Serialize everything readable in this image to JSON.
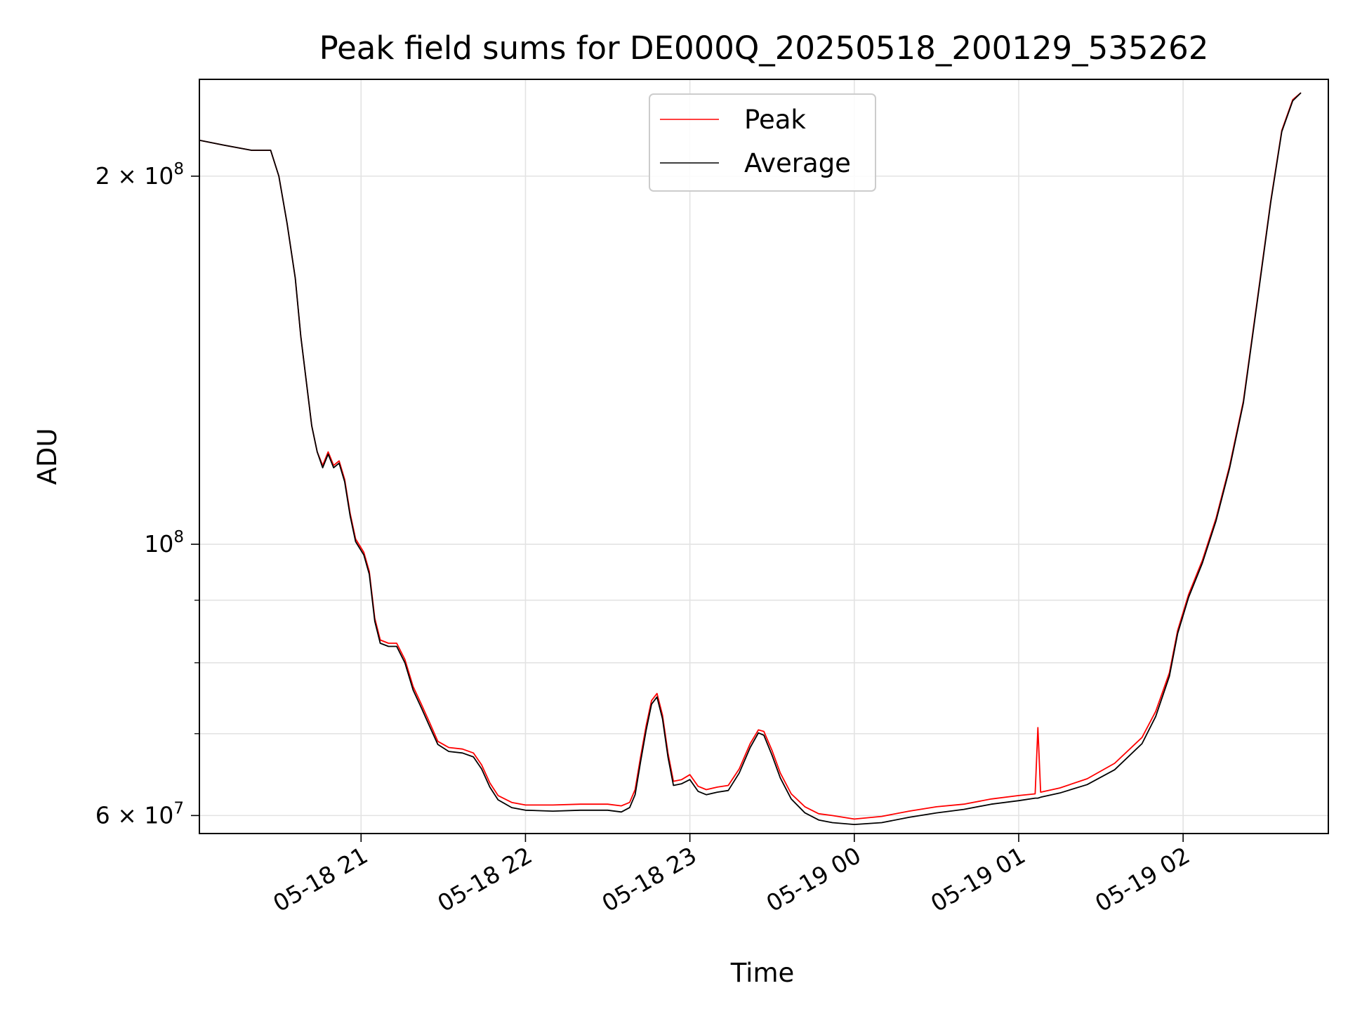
{
  "chart_data": {
    "type": "line",
    "title": "Peak field sums for DE000Q_20250518_200129_535262",
    "xlabel": "Time",
    "ylabel": "ADU",
    "yscale": "log",
    "ylim": [
      58000000,
      240000000
    ],
    "xlim": [
      "2025-05-18T20:01",
      "2025-05-19T02:53"
    ],
    "grid": true,
    "legend_position": "upper center",
    "x_ticks": [
      {
        "t": "2025-05-18T21:00",
        "label": "05-18 21"
      },
      {
        "t": "2025-05-18T22:00",
        "label": "05-18 22"
      },
      {
        "t": "2025-05-18T23:00",
        "label": "05-18 23"
      },
      {
        "t": "2025-05-19T00:00",
        "label": "05-19 00"
      },
      {
        "t": "2025-05-19T01:00",
        "label": "05-19 01"
      },
      {
        "t": "2025-05-19T02:00",
        "label": "05-19 02"
      }
    ],
    "y_major_ticks": [
      {
        "value": 60000000,
        "base": "6 × 10",
        "exp": "7"
      },
      {
        "value": 100000000,
        "base": "10",
        "exp": "8"
      },
      {
        "value": 200000000,
        "base": "2 × 10",
        "exp": "8"
      }
    ],
    "y_minor_ticks": [
      70000000,
      80000000,
      90000000
    ],
    "series": [
      {
        "name": "Peak",
        "color": "#ff0000",
        "points": [
          [
            "2025-05-18T20:01",
            214000000
          ],
          [
            "2025-05-18T20:10",
            212000000
          ],
          [
            "2025-05-18T20:20",
            210000000
          ],
          [
            "2025-05-18T20:27",
            210000000
          ],
          [
            "2025-05-18T20:30",
            200000000
          ],
          [
            "2025-05-18T20:33",
            183000000
          ],
          [
            "2025-05-18T20:36",
            165000000
          ],
          [
            "2025-05-18T20:38",
            148000000
          ],
          [
            "2025-05-18T20:40",
            136000000
          ],
          [
            "2025-05-18T20:42",
            125000000
          ],
          [
            "2025-05-18T20:44",
            119000000
          ],
          [
            "2025-05-18T20:46",
            116000000
          ],
          [
            "2025-05-18T20:48",
            119000000
          ],
          [
            "2025-05-18T20:50",
            116000000
          ],
          [
            "2025-05-18T20:52",
            117000000
          ],
          [
            "2025-05-18T20:54",
            113000000
          ],
          [
            "2025-05-18T20:56",
            106000000
          ],
          [
            "2025-05-18T20:58",
            101000000
          ],
          [
            "2025-05-18T21:01",
            98500000
          ],
          [
            "2025-05-18T21:03",
            95000000
          ],
          [
            "2025-05-18T21:05",
            87000000
          ],
          [
            "2025-05-18T21:07",
            83500000
          ],
          [
            "2025-05-18T21:10",
            83000000
          ],
          [
            "2025-05-18T21:13",
            83000000
          ],
          [
            "2025-05-18T21:16",
            80500000
          ],
          [
            "2025-05-18T21:19",
            76500000
          ],
          [
            "2025-05-18T21:22",
            74000000
          ],
          [
            "2025-05-18T21:25",
            71500000
          ],
          [
            "2025-05-18T21:28",
            69000000
          ],
          [
            "2025-05-18T21:32",
            68200000
          ],
          [
            "2025-05-18T21:37",
            68000000
          ],
          [
            "2025-05-18T21:41",
            67500000
          ],
          [
            "2025-05-18T21:44",
            66000000
          ],
          [
            "2025-05-18T21:47",
            63800000
          ],
          [
            "2025-05-18T21:50",
            62300000
          ],
          [
            "2025-05-18T21:55",
            61500000
          ],
          [
            "2025-05-18T22:00",
            61200000
          ],
          [
            "2025-05-18T22:10",
            61200000
          ],
          [
            "2025-05-18T22:20",
            61300000
          ],
          [
            "2025-05-18T22:30",
            61300000
          ],
          [
            "2025-05-18T22:35",
            61100000
          ],
          [
            "2025-05-18T22:38",
            61500000
          ],
          [
            "2025-05-18T22:40",
            63000000
          ],
          [
            "2025-05-18T22:42",
            67000000
          ],
          [
            "2025-05-18T22:44",
            71000000
          ],
          [
            "2025-05-18T22:46",
            74500000
          ],
          [
            "2025-05-18T22:48",
            75500000
          ],
          [
            "2025-05-18T22:50",
            72500000
          ],
          [
            "2025-05-18T22:52",
            67500000
          ],
          [
            "2025-05-18T22:54",
            64000000
          ],
          [
            "2025-05-18T22:57",
            64200000
          ],
          [
            "2025-05-18T23:00",
            64800000
          ],
          [
            "2025-05-18T23:03",
            63400000
          ],
          [
            "2025-05-18T23:06",
            63000000
          ],
          [
            "2025-05-18T23:10",
            63300000
          ],
          [
            "2025-05-18T23:14",
            63500000
          ],
          [
            "2025-05-18T23:18",
            65500000
          ],
          [
            "2025-05-18T23:22",
            68700000
          ],
          [
            "2025-05-18T23:25",
            70500000
          ],
          [
            "2025-05-18T23:27",
            70300000
          ],
          [
            "2025-05-18T23:30",
            67800000
          ],
          [
            "2025-05-18T23:33",
            65000000
          ],
          [
            "2025-05-18T23:37",
            62500000
          ],
          [
            "2025-05-18T23:42",
            61000000
          ],
          [
            "2025-05-18T23:47",
            60200000
          ],
          [
            "2025-05-18T23:52",
            60000000
          ],
          [
            "2025-05-19T00:00",
            59600000
          ],
          [
            "2025-05-19T00:10",
            59900000
          ],
          [
            "2025-05-19T00:20",
            60500000
          ],
          [
            "2025-05-19T00:30",
            61000000
          ],
          [
            "2025-05-19T00:40",
            61300000
          ],
          [
            "2025-05-19T00:50",
            61900000
          ],
          [
            "2025-05-19T01:00",
            62300000
          ],
          [
            "2025-05-19T01:06",
            62500000
          ],
          [
            "2025-05-19T01:07",
            70800000
          ],
          [
            "2025-05-19T01:08",
            62700000
          ],
          [
            "2025-05-19T01:15",
            63200000
          ],
          [
            "2025-05-19T01:25",
            64300000
          ],
          [
            "2025-05-19T01:35",
            66200000
          ],
          [
            "2025-05-19T01:45",
            69500000
          ],
          [
            "2025-05-19T01:50",
            73000000
          ],
          [
            "2025-05-19T01:55",
            78500000
          ],
          [
            "2025-05-19T01:58",
            85000000
          ],
          [
            "2025-05-19T02:02",
            91000000
          ],
          [
            "2025-05-19T02:07",
            97000000
          ],
          [
            "2025-05-19T02:12",
            105000000
          ],
          [
            "2025-05-19T02:17",
            116000000
          ],
          [
            "2025-05-19T02:22",
            131000000
          ],
          [
            "2025-05-19T02:27",
            158000000
          ],
          [
            "2025-05-19T02:32",
            191000000
          ],
          [
            "2025-05-19T02:36",
            218000000
          ],
          [
            "2025-05-19T02:40",
            231000000
          ],
          [
            "2025-05-19T02:43",
            234000000
          ]
        ]
      },
      {
        "name": "Average",
        "color": "#000000",
        "points": [
          [
            "2025-05-18T20:01",
            214000000
          ],
          [
            "2025-05-18T20:10",
            212000000
          ],
          [
            "2025-05-18T20:20",
            210000000
          ],
          [
            "2025-05-18T20:27",
            210000000
          ],
          [
            "2025-05-18T20:30",
            200000000
          ],
          [
            "2025-05-18T20:33",
            183000000
          ],
          [
            "2025-05-18T20:36",
            165000000
          ],
          [
            "2025-05-18T20:38",
            148000000
          ],
          [
            "2025-05-18T20:40",
            136000000
          ],
          [
            "2025-05-18T20:42",
            125000000
          ],
          [
            "2025-05-18T20:44",
            119000000
          ],
          [
            "2025-05-18T20:46",
            115500000
          ],
          [
            "2025-05-18T20:48",
            118500000
          ],
          [
            "2025-05-18T20:50",
            115500000
          ],
          [
            "2025-05-18T20:52",
            116500000
          ],
          [
            "2025-05-18T20:54",
            112500000
          ],
          [
            "2025-05-18T20:56",
            105500000
          ],
          [
            "2025-05-18T20:58",
            100500000
          ],
          [
            "2025-05-18T21:01",
            98000000
          ],
          [
            "2025-05-18T21:03",
            94500000
          ],
          [
            "2025-05-18T21:05",
            86500000
          ],
          [
            "2025-05-18T21:07",
            83000000
          ],
          [
            "2025-05-18T21:10",
            82500000
          ],
          [
            "2025-05-18T21:13",
            82500000
          ],
          [
            "2025-05-18T21:16",
            80000000
          ],
          [
            "2025-05-18T21:19",
            76000000
          ],
          [
            "2025-05-18T21:22",
            73500000
          ],
          [
            "2025-05-18T21:25",
            71000000
          ],
          [
            "2025-05-18T21:28",
            68600000
          ],
          [
            "2025-05-18T21:32",
            67700000
          ],
          [
            "2025-05-18T21:37",
            67500000
          ],
          [
            "2025-05-18T21:41",
            67000000
          ],
          [
            "2025-05-18T21:44",
            65500000
          ],
          [
            "2025-05-18T21:47",
            63300000
          ],
          [
            "2025-05-18T21:50",
            61800000
          ],
          [
            "2025-05-18T21:55",
            60900000
          ],
          [
            "2025-05-18T22:00",
            60600000
          ],
          [
            "2025-05-18T22:10",
            60500000
          ],
          [
            "2025-05-18T22:20",
            60600000
          ],
          [
            "2025-05-18T22:30",
            60600000
          ],
          [
            "2025-05-18T22:35",
            60400000
          ],
          [
            "2025-05-18T22:38",
            60900000
          ],
          [
            "2025-05-18T22:40",
            62400000
          ],
          [
            "2025-05-18T22:42",
            66400000
          ],
          [
            "2025-05-18T22:44",
            70400000
          ],
          [
            "2025-05-18T22:46",
            74000000
          ],
          [
            "2025-05-18T22:48",
            75000000
          ],
          [
            "2025-05-18T22:50",
            72000000
          ],
          [
            "2025-05-18T22:52",
            67000000
          ],
          [
            "2025-05-18T22:54",
            63500000
          ],
          [
            "2025-05-18T22:57",
            63700000
          ],
          [
            "2025-05-18T23:00",
            64200000
          ],
          [
            "2025-05-18T23:03",
            62800000
          ],
          [
            "2025-05-18T23:06",
            62400000
          ],
          [
            "2025-05-18T23:10",
            62700000
          ],
          [
            "2025-05-18T23:14",
            62900000
          ],
          [
            "2025-05-18T23:18",
            65000000
          ],
          [
            "2025-05-18T23:22",
            68200000
          ],
          [
            "2025-05-18T23:25",
            70100000
          ],
          [
            "2025-05-18T23:27",
            69800000
          ],
          [
            "2025-05-18T23:30",
            67200000
          ],
          [
            "2025-05-18T23:33",
            64400000
          ],
          [
            "2025-05-18T23:37",
            61900000
          ],
          [
            "2025-05-18T23:42",
            60300000
          ],
          [
            "2025-05-18T23:47",
            59500000
          ],
          [
            "2025-05-18T23:52",
            59200000
          ],
          [
            "2025-05-19T00:00",
            59000000
          ],
          [
            "2025-05-19T00:10",
            59200000
          ],
          [
            "2025-05-19T00:20",
            59800000
          ],
          [
            "2025-05-19T00:30",
            60300000
          ],
          [
            "2025-05-19T00:40",
            60700000
          ],
          [
            "2025-05-19T00:50",
            61300000
          ],
          [
            "2025-05-19T01:00",
            61700000
          ],
          [
            "2025-05-19T01:06",
            62000000
          ],
          [
            "2025-05-19T01:07",
            62000000
          ],
          [
            "2025-05-19T01:08",
            62100000
          ],
          [
            "2025-05-19T01:15",
            62600000
          ],
          [
            "2025-05-19T01:25",
            63600000
          ],
          [
            "2025-05-19T01:35",
            65400000
          ],
          [
            "2025-05-19T01:45",
            68700000
          ],
          [
            "2025-05-19T01:50",
            72300000
          ],
          [
            "2025-05-19T01:55",
            78000000
          ],
          [
            "2025-05-19T01:58",
            84500000
          ],
          [
            "2025-05-19T02:02",
            90500000
          ],
          [
            "2025-05-19T02:07",
            96500000
          ],
          [
            "2025-05-19T02:12",
            104500000
          ],
          [
            "2025-05-19T02:17",
            115500000
          ],
          [
            "2025-05-19T02:22",
            130500000
          ],
          [
            "2025-05-19T02:27",
            157500000
          ],
          [
            "2025-05-19T02:32",
            190500000
          ],
          [
            "2025-05-19T02:36",
            217500000
          ],
          [
            "2025-05-19T02:40",
            230500000
          ],
          [
            "2025-05-19T02:43",
            234000000
          ]
        ]
      }
    ]
  }
}
